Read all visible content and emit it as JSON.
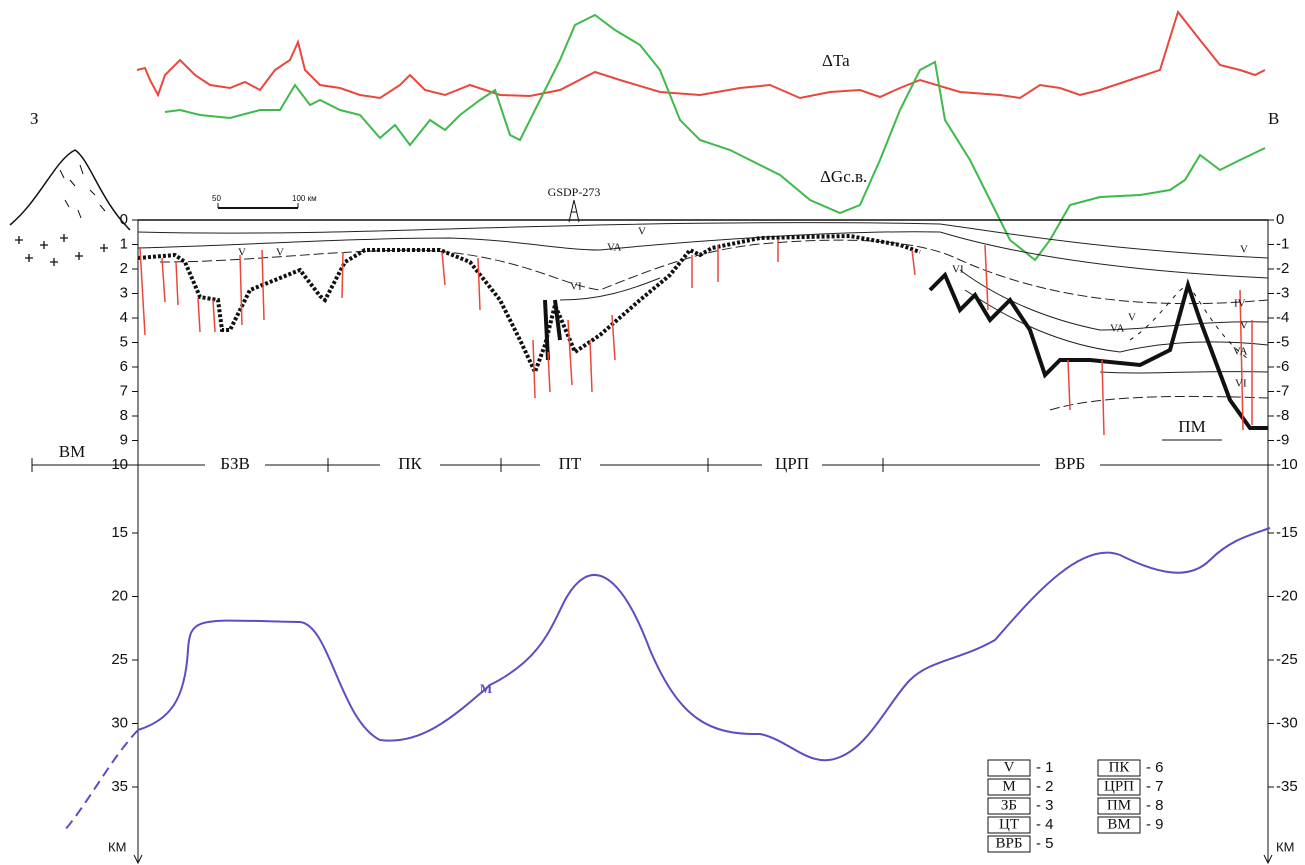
{
  "side_labels": {
    "west": "З",
    "east": "В"
  },
  "curve_labels": {
    "magnetic": "ΔTa",
    "gravity": "ΔGc.в."
  },
  "well": "GSDP-273",
  "scale_bar": {
    "start": "50",
    "end": "100 км"
  },
  "upper_axis": {
    "left": [
      "0",
      "1",
      "2",
      "3",
      "4",
      "5",
      "6",
      "7",
      "8",
      "9",
      "10"
    ],
    "right": [
      "0",
      "-1",
      "-2",
      "-3",
      "-4",
      "-5",
      "-6",
      "-7",
      "-8",
      "-9",
      "-10"
    ]
  },
  "lower_axis": {
    "left": [
      "15",
      "20",
      "25",
      "30",
      "35"
    ],
    "right": [
      "-15",
      "-20",
      "-25",
      "-30",
      "-35"
    ],
    "unit_left": "КМ",
    "unit_right": "КМ"
  },
  "zones": [
    "ВМ",
    "БЗВ",
    "ПК",
    "ПТ",
    "ЦРП",
    "ВРБ"
  ],
  "pm_label": "ПМ",
  "moho_label": "M",
  "layer_labels": [
    "V",
    "V",
    "V",
    "VA",
    "VI",
    "VI",
    "V",
    "IV",
    "V",
    "V",
    "VA",
    "VA",
    "VI"
  ],
  "legend": [
    {
      "symbol": "V",
      "number": "- 1"
    },
    {
      "symbol": "M",
      "number": "- 2"
    },
    {
      "symbol": "ЗБ",
      "number": "- 3"
    },
    {
      "symbol": "ЦТ",
      "number": "- 4"
    },
    {
      "symbol": "ВРБ",
      "number": "- 5"
    },
    {
      "symbol": "ПК",
      "number": "- 6"
    },
    {
      "symbol": "ЦРП",
      "number": "- 7"
    },
    {
      "symbol": "ПМ",
      "number": "- 8"
    },
    {
      "symbol": "ВМ",
      "number": "- 9"
    }
  ]
}
